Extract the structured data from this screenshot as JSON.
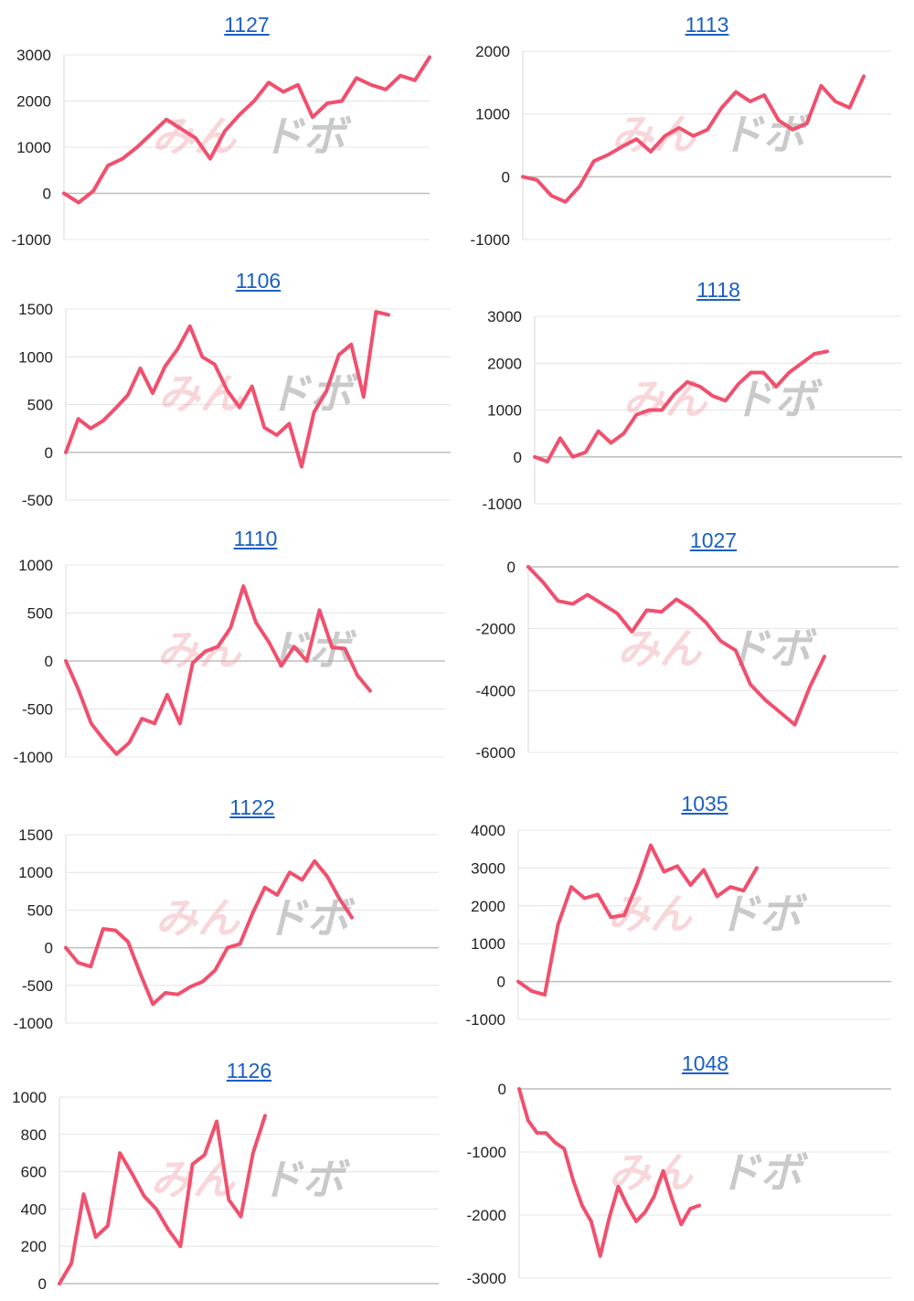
{
  "colors": {
    "line": "#f0506e",
    "title": "#1a5fc4",
    "watermark_pink": "#f0a0a8",
    "watermark_gray": "#a0a0a0"
  },
  "watermark": {
    "part1": "みん",
    "part2": "ドボ"
  },
  "chart_data": [
    {
      "type": "line",
      "title": "1127",
      "ylim": [
        -1000,
        3000
      ],
      "yticks": [
        3000,
        2000,
        1000,
        0,
        -1000
      ],
      "values": [
        0,
        -200,
        50,
        600,
        750,
        1000,
        1300,
        1600,
        1400,
        1200,
        750,
        1350,
        1700,
        2000,
        2400,
        2200,
        2350,
        1650,
        1950,
        2000,
        2500,
        2350,
        2250,
        2550,
        2450,
        2950
      ]
    },
    {
      "type": "line",
      "title": "1113",
      "ylim": [
        -1000,
        2000
      ],
      "yticks": [
        2000,
        1000,
        0,
        -1000
      ],
      "values": [
        0,
        -50,
        -300,
        -400,
        -150,
        250,
        350,
        480,
        600,
        400,
        650,
        780,
        650,
        750,
        1100,
        1350,
        1200,
        1300,
        900,
        750,
        850,
        1450,
        1200,
        1100,
        1600
      ]
    },
    {
      "type": "line",
      "title": "1106",
      "ylim": [
        -500,
        1500
      ],
      "yticks": [
        1500,
        1000,
        500,
        0,
        -500
      ],
      "values": [
        0,
        350,
        250,
        330,
        460,
        600,
        880,
        620,
        900,
        1080,
        1320,
        1000,
        920,
        650,
        470,
        690,
        260,
        180,
        300,
        -150,
        420,
        640,
        1020,
        1130,
        580,
        1470,
        1440
      ]
    },
    {
      "type": "line",
      "title": "1118",
      "ylim": [
        -1000,
        3000
      ],
      "yticks": [
        3000,
        2000,
        1000,
        0,
        -1000
      ],
      "values": [
        0,
        -100,
        400,
        0,
        100,
        550,
        300,
        500,
        900,
        1000,
        1000,
        1350,
        1600,
        1500,
        1300,
        1200,
        1550,
        1800,
        1800,
        1500,
        1800,
        2000,
        2200,
        2250
      ]
    },
    {
      "type": "line",
      "title": "1110",
      "ylim": [
        -1000,
        1000
      ],
      "yticks": [
        1000,
        500,
        0,
        -500,
        -1000
      ],
      "values": [
        0,
        -300,
        -650,
        -820,
        -970,
        -850,
        -600,
        -650,
        -350,
        -650,
        -20,
        100,
        150,
        350,
        780,
        400,
        200,
        -50,
        150,
        0,
        530,
        140,
        130,
        -150,
        -310
      ]
    },
    {
      "type": "line",
      "title": "1027",
      "ylim": [
        -6000,
        0
      ],
      "yticks": [
        0,
        -2000,
        -4000,
        -6000
      ],
      "values": [
        0,
        -500,
        -1100,
        -1200,
        -900,
        -1200,
        -1500,
        -2100,
        -1400,
        -1450,
        -1050,
        -1350,
        -1800,
        -2400,
        -2700,
        -3800,
        -4300,
        -4700,
        -5100,
        -3900,
        -2900
      ]
    },
    {
      "type": "line",
      "title": "1122",
      "ylim": [
        -1000,
        1500
      ],
      "yticks": [
        1500,
        1000,
        500,
        0,
        -500,
        -1000
      ],
      "values": [
        0,
        -200,
        -250,
        250,
        230,
        80,
        -350,
        -750,
        -600,
        -620,
        -520,
        -450,
        -300,
        0,
        50,
        450,
        800,
        700,
        1000,
        900,
        1150,
        950,
        650,
        400
      ]
    },
    {
      "type": "line",
      "title": "1035",
      "ylim": [
        -1000,
        4000
      ],
      "yticks": [
        4000,
        3000,
        2000,
        1000,
        0,
        -1000
      ],
      "values": [
        0,
        -250,
        -350,
        1500,
        2500,
        2200,
        2300,
        1700,
        1750,
        2600,
        3600,
        2900,
        3050,
        2550,
        2950,
        2250,
        2500,
        2400,
        3000
      ]
    },
    {
      "type": "line",
      "title": "1126",
      "ylim": [
        0,
        1000
      ],
      "yticks": [
        1000,
        800,
        600,
        400,
        200,
        0
      ],
      "values": [
        0,
        110,
        480,
        250,
        310,
        700,
        590,
        470,
        400,
        290,
        200,
        640,
        690,
        870,
        450,
        360,
        700,
        900
      ]
    },
    {
      "type": "line",
      "title": "1048",
      "ylim": [
        -3000,
        0
      ],
      "yticks": [
        0,
        -1000,
        -2000,
        -3000
      ],
      "values": [
        0,
        -500,
        -700,
        -700,
        -850,
        -950,
        -1450,
        -1850,
        -2100,
        -2650,
        -2050,
        -1550,
        -1850,
        -2100,
        -1950,
        -1700,
        -1300,
        -1750,
        -2150,
        -1900,
        -1850
      ]
    }
  ]
}
